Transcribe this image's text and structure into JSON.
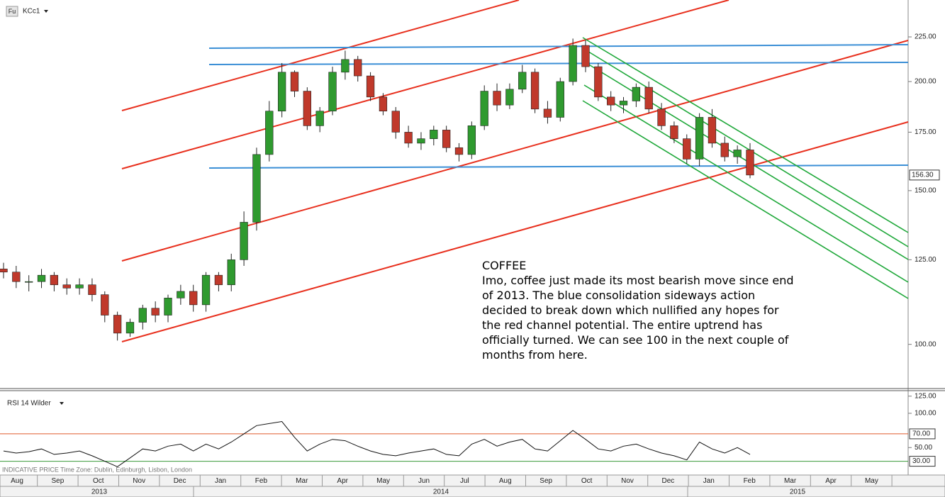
{
  "chart_data": [
    {
      "type": "candlestick",
      "symbol": "KCc1",
      "symbol_icon": "Fu",
      "log_scale": true,
      "ylim": [
        89,
        248
      ],
      "yticks": [
        {
          "value": 100,
          "label": "100.00"
        },
        {
          "value": 125,
          "label": "125.00"
        },
        {
          "value": 150,
          "label": "150.00"
        },
        {
          "value": 175,
          "label": "175.00"
        },
        {
          "value": 200,
          "label": "200.00"
        },
        {
          "value": 225,
          "label": "225.00"
        }
      ],
      "last_price": {
        "value": 156.3,
        "label": "156.30"
      },
      "up_color": "#2f9a2f",
      "down_color": "#c0392b",
      "open": [
        122,
        121,
        118,
        118,
        120,
        117,
        116,
        117,
        114,
        108,
        103,
        106,
        110,
        108,
        113,
        115,
        111,
        120,
        117,
        125,
        138,
        165,
        185,
        205,
        195,
        178,
        185,
        205,
        212,
        203,
        192,
        185,
        175,
        170,
        172,
        176,
        168,
        165,
        178,
        195,
        188,
        196,
        205,
        186,
        182,
        200,
        220,
        208,
        192,
        188,
        190,
        197,
        186,
        178,
        172,
        163,
        182,
        170,
        164,
        167
      ],
      "high": [
        124,
        123,
        120,
        122,
        121,
        119,
        119,
        119,
        115,
        109,
        107,
        111,
        112,
        114,
        117,
        117,
        121,
        121,
        127,
        142,
        168,
        190,
        210,
        206,
        197,
        187,
        208,
        217,
        214,
        205,
        194,
        187,
        178,
        175,
        178,
        178,
        170,
        180,
        198,
        199,
        199,
        209,
        207,
        190,
        202,
        224,
        223,
        210,
        195,
        192,
        199,
        200,
        189,
        180,
        174,
        184,
        186,
        173,
        169,
        170
      ],
      "low": [
        119,
        116,
        115,
        116,
        115,
        114,
        114,
        112,
        106,
        101,
        102,
        104,
        106,
        106,
        111,
        109,
        109,
        115,
        115,
        123,
        135,
        162,
        182,
        192,
        176,
        175,
        183,
        201,
        200,
        190,
        183,
        172,
        168,
        167,
        169,
        166,
        162,
        163,
        176,
        185,
        186,
        194,
        184,
        179,
        180,
        198,
        205,
        190,
        185,
        184,
        187,
        184,
        176,
        170,
        161,
        160,
        168,
        162,
        161,
        155
      ],
      "close": [
        121,
        118,
        118,
        120,
        117,
        116,
        117,
        114,
        108,
        103,
        106,
        110,
        108,
        113,
        115,
        111,
        120,
        117,
        125,
        138,
        165,
        185,
        205,
        195,
        178,
        185,
        205,
        212,
        203,
        192,
        185,
        175,
        170,
        172,
        176,
        168,
        165,
        178,
        195,
        188,
        196,
        205,
        186,
        182,
        200,
        220,
        208,
        192,
        188,
        190,
        197,
        186,
        178,
        172,
        163,
        182,
        170,
        164,
        167,
        156.3
      ],
      "categories": [
        "Aug",
        "Sep",
        "Oct",
        "Nov",
        "Dec",
        "Jan",
        "Feb",
        "Mar",
        "Apr",
        "May",
        "Jun",
        "Jul",
        "Aug",
        "Sep",
        "Oct",
        "Nov",
        "Dec",
        "Jan",
        "Feb",
        "Mar",
        "Apr",
        "May"
      ],
      "years": [
        "2013",
        "2014",
        "2015"
      ],
      "annotation": {
        "title": "COFFEE",
        "lines": [
          "Imo, coffee just made its most bearish move since end",
          "of 2013. The blue consolidation sideways action",
          "decided to break down which nullified any hopes for",
          "the red channel potential. The entire uptrend has",
          "officially turned. We can see 100 in the next couple of",
          "months from here."
        ]
      },
      "footer": "INDICATIVE PRICE   Time Zone: Dublin, Edinburgh, Lisbon, London"
    },
    {
      "type": "line",
      "title": "RSI 14 Wilder",
      "color": "#111111",
      "ylim": [
        12,
        132
      ],
      "yticks": [
        {
          "value": 125,
          "label": "125.00"
        },
        {
          "value": 100,
          "label": "100.00"
        },
        {
          "value": 50,
          "label": "50.00"
        }
      ],
      "levels": [
        {
          "value": 70,
          "label": "70.00",
          "color": "#e05a2b"
        },
        {
          "value": 30,
          "label": "30.00",
          "color": "#3a9a3a"
        }
      ],
      "values": [
        45,
        42,
        44,
        48,
        40,
        42,
        45,
        38,
        30,
        22,
        35,
        48,
        45,
        52,
        55,
        45,
        55,
        48,
        58,
        70,
        82,
        85,
        88,
        65,
        45,
        55,
        62,
        60,
        52,
        45,
        40,
        38,
        42,
        45,
        48,
        40,
        38,
        55,
        62,
        52,
        58,
        62,
        48,
        45,
        60,
        75,
        62,
        48,
        45,
        52,
        55,
        48,
        42,
        38,
        32,
        58,
        48,
        42,
        50,
        40
      ]
    }
  ]
}
